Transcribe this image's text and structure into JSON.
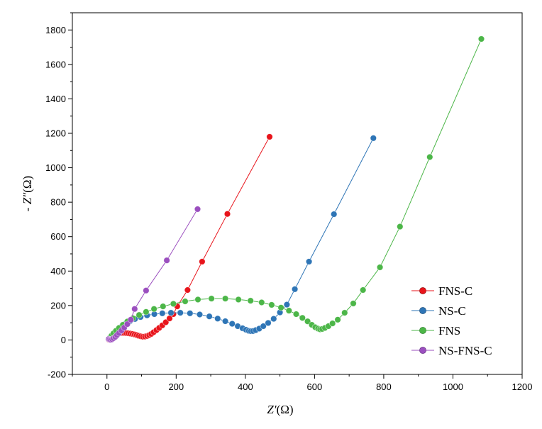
{
  "chart_data": {
    "type": "scatter",
    "xlabel_italic": "Z′",
    "xlabel_unit": "(Ω)",
    "ylabel_prefix": "- ",
    "ylabel_italic": "Z″",
    "ylabel_unit": "(Ω)",
    "xlim": [
      -100,
      1200
    ],
    "ylim": [
      -200,
      1900
    ],
    "xticks": [
      0,
      200,
      400,
      600,
      800,
      1000,
      1200
    ],
    "yticks": [
      -200,
      0,
      200,
      400,
      600,
      800,
      1000,
      1200,
      1400,
      1600,
      1800
    ],
    "legend_position": "right",
    "series": [
      {
        "name": "FNS-C",
        "color": "#e8141b",
        "x": [
          5,
          8,
          11,
          14,
          18,
          22,
          27,
          32,
          38,
          44,
          50,
          56,
          62,
          68,
          74,
          80,
          86,
          92,
          98,
          104,
          110,
          116,
          122,
          128,
          135,
          143,
          151,
          160,
          170,
          181,
          192,
          203,
          233,
          275,
          348,
          470
        ],
        "y": [
          2,
          8,
          14,
          20,
          26,
          31,
          35,
          38,
          40,
          41,
          41,
          40,
          39,
          37,
          35,
          32,
          28,
          24,
          21,
          19,
          20,
          23,
          28,
          35,
          45,
          57,
          70,
          85,
          103,
          125,
          150,
          195,
          290,
          455,
          732,
          1180
        ]
      },
      {
        "name": "NS-C",
        "color": "#2e75b6",
        "x": [
          5,
          9,
          14,
          20,
          27,
          35,
          44,
          55,
          67,
          81,
          97,
          116,
          137,
          160,
          185,
          212,
          240,
          268,
          296,
          320,
          342,
          362,
          378,
          392,
          402,
          410,
          416,
          422,
          430,
          440,
          452,
          466,
          482,
          500,
          520,
          543,
          584,
          656,
          770
        ],
        "y": [
          5,
          15,
          27,
          40,
          53,
          67,
          82,
          96,
          110,
          122,
          133,
          143,
          150,
          155,
          158,
          158,
          155,
          148,
          137,
          124,
          109,
          94,
          80,
          68,
          59,
          53,
          51,
          52,
          57,
          66,
          80,
          99,
          123,
          160,
          205,
          295,
          455,
          730,
          1172
        ]
      },
      {
        "name": "FNS",
        "color": "#4cb648",
        "x": [
          8,
          13,
          19,
          26,
          35,
          46,
          59,
          75,
          93,
          113,
          136,
          162,
          192,
          226,
          263,
          302,
          342,
          380,
          415,
          447,
          476,
          503,
          526,
          547,
          565,
          580,
          592,
          602,
          610,
          616,
          622,
          630,
          640,
          652,
          667,
          687,
          712,
          740,
          789,
          847,
          933,
          1082
        ],
        "y": [
          12,
          24,
          38,
          53,
          70,
          88,
          107,
          126,
          145,
          163,
          180,
          195,
          210,
          224,
          235,
          240,
          240,
          235,
          228,
          218,
          204,
          188,
          170,
          150,
          128,
          108,
          88,
          74,
          66,
          62,
          64,
          70,
          80,
          96,
          118,
          158,
          212,
          290,
          422,
          658,
          1062,
          1748
        ]
      },
      {
        "name": "NS-FNS-C",
        "color": "#9b4fbf",
        "x": [
          5,
          8,
          11,
          15,
          19,
          24,
          29,
          35,
          42,
          50,
          59,
          69,
          80,
          113,
          173,
          262
        ],
        "y": [
          5,
          2,
          1,
          4,
          10,
          18,
          28,
          40,
          55,
          72,
          92,
          118,
          180,
          287,
          462,
          760
        ]
      }
    ]
  }
}
